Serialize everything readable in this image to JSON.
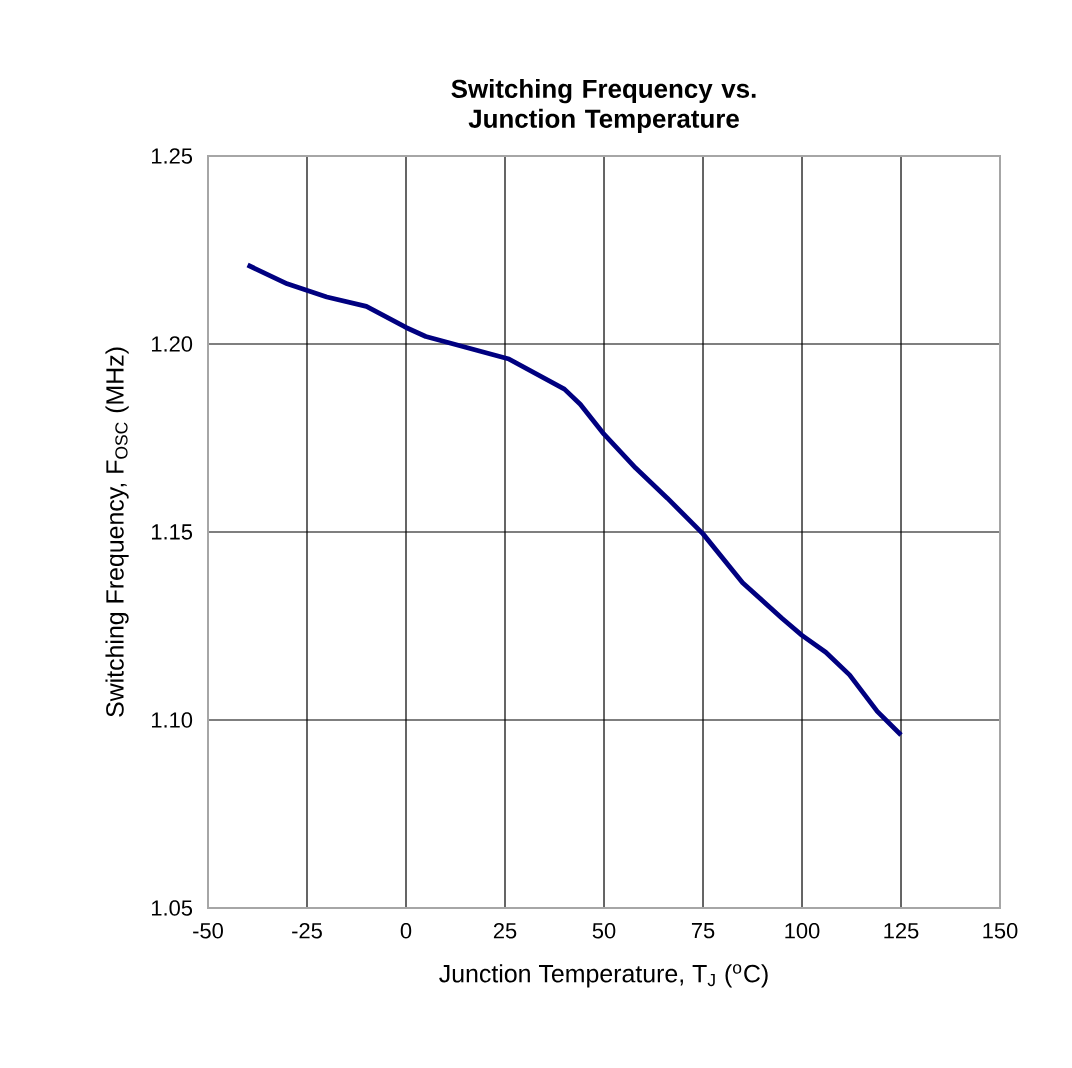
{
  "chart_data": {
    "type": "line",
    "title": "Switching Frequency vs. Junction Temperature",
    "xlabel": "Junction Temperature, T$_{J}$ ($^{o}$C)",
    "ylabel": "Switching Frequency, F$_{OSC}$ (MHz)",
    "xlim": [
      -50,
      150
    ],
    "xticks": [
      -50,
      -25,
      0,
      25,
      50,
      75,
      100,
      125,
      150
    ],
    "ylim": [
      1.05,
      1.25
    ],
    "yticks": [
      {
        "value": 1.05,
        "label": "1.05"
      },
      {
        "value": 1.1,
        "label": "1.10"
      },
      {
        "value": 1.15,
        "label": "1.15"
      },
      {
        "value": 1.2,
        "label": "1.20"
      },
      {
        "value": 1.25,
        "label": "1.25"
      }
    ],
    "grid": true,
    "series": [
      {
        "color": "#000080",
        "x": [
          -40,
          -30,
          -20,
          -10,
          0,
          5,
          19,
          26,
          40,
          44,
          50,
          58,
          66,
          75,
          85,
          95,
          100,
          106,
          112,
          119,
          125
        ],
        "values": [
          1.221,
          1.216,
          1.2125,
          1.21,
          1.2044,
          1.202,
          1.198,
          1.196,
          1.188,
          1.184,
          1.176,
          1.167,
          1.159,
          1.1495,
          1.1365,
          1.127,
          1.1225,
          1.118,
          1.112,
          1.1023,
          1.096
        ]
      }
    ]
  }
}
